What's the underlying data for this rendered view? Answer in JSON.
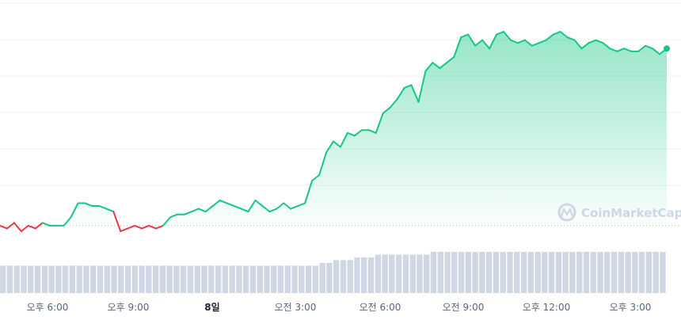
{
  "chart_data": {
    "type": "area",
    "title": "",
    "xlabel": "",
    "ylabel": "",
    "grid": true,
    "legend": "none",
    "reference_line": "opening price (dotted)",
    "x_ticks": [
      "오후 6:00",
      "오후 9:00",
      "8일",
      "오전 3:00",
      "오전 6:00",
      "오전 9:00",
      "오후 12:00",
      "오후 3:00"
    ],
    "series": [
      {
        "values": [
          0,
          -1,
          1,
          -2,
          0,
          -1,
          1,
          0,
          0,
          0,
          3,
          8,
          8,
          7,
          7,
          6,
          5,
          -2,
          -1,
          0,
          -1,
          0,
          -1,
          0,
          3,
          4,
          4,
          5,
          6,
          5,
          7,
          9,
          8,
          7,
          6,
          5,
          9,
          7,
          5,
          6,
          8,
          6,
          7,
          8,
          16,
          18,
          26,
          30,
          28,
          33,
          32,
          34,
          34,
          33,
          40,
          42,
          45,
          49,
          50,
          44,
          55,
          58,
          56,
          58,
          60,
          67,
          68,
          64,
          66,
          63,
          68,
          69,
          66,
          65,
          66,
          64,
          65,
          66,
          68,
          69,
          67,
          66,
          63,
          65,
          66,
          65,
          63,
          62,
          63,
          62,
          62,
          64,
          63,
          61,
          63
        ]
      }
    ],
    "volume": {
      "values": [
        10,
        10,
        10,
        10,
        10,
        10,
        10,
        10,
        10,
        10,
        10,
        10,
        10,
        10,
        10,
        10,
        10,
        10,
        10,
        10,
        10,
        10,
        10,
        10,
        10,
        10,
        10,
        10,
        10,
        10,
        10,
        10,
        10,
        10,
        10,
        10,
        10,
        10,
        10,
        10,
        10,
        10,
        10,
        10,
        10,
        10,
        11,
        11,
        12,
        12,
        12,
        13,
        13,
        13,
        14,
        14,
        14,
        14,
        14,
        14,
        14,
        14,
        15,
        15,
        15,
        15,
        15,
        15,
        15,
        15,
        15,
        15,
        15,
        15,
        15,
        15,
        15,
        15,
        15,
        15,
        15,
        15,
        15,
        15,
        15,
        15,
        15,
        15,
        15,
        15,
        15,
        15,
        15,
        15,
        15,
        15
      ]
    },
    "colors": {
      "up": "#16c784",
      "down": "#ea3943",
      "volume": "#cfd6e4"
    }
  },
  "watermark": {
    "text": "CoinMarketCap"
  }
}
